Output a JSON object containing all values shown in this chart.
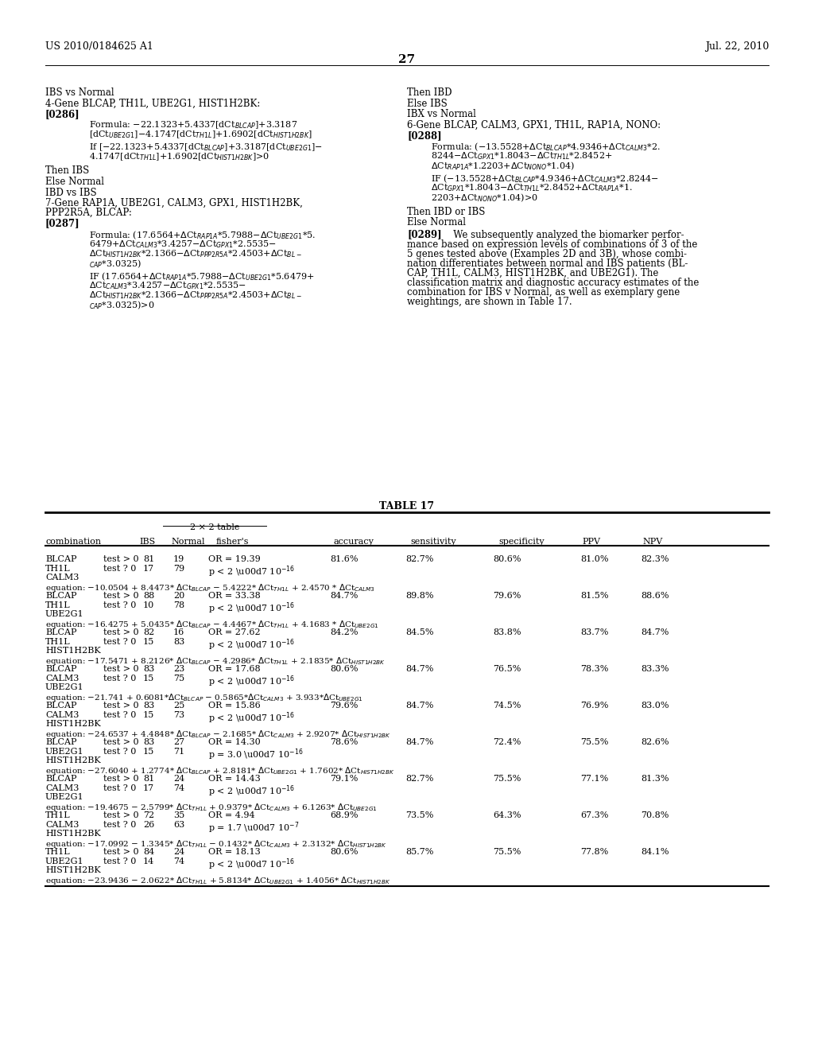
{
  "page_num": "27",
  "patent_left": "US 2010/0184625 A1",
  "patent_right": "Jul. 22, 2010",
  "bg_color": "#ffffff"
}
